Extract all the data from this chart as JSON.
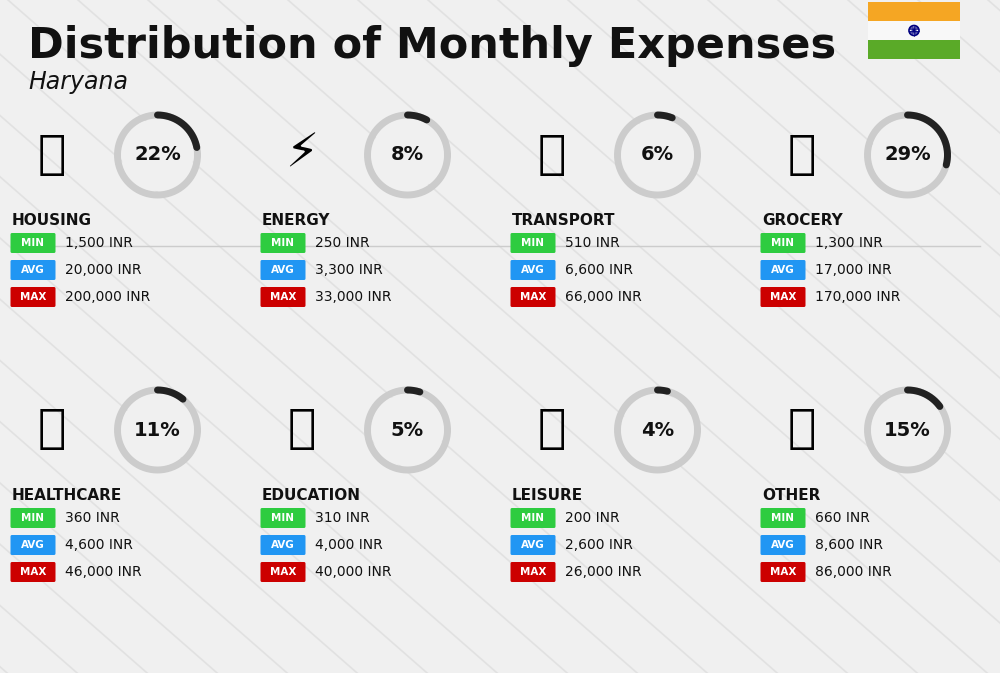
{
  "title": "Distribution of Monthly Expenses",
  "subtitle": "Haryana",
  "background_color": "#f0f0f0",
  "categories": [
    {
      "name": "HOUSING",
      "percent": 22,
      "min": "1,500 INR",
      "avg": "20,000 INR",
      "max": "200,000 INR",
      "col": 0,
      "row": 0
    },
    {
      "name": "ENERGY",
      "percent": 8,
      "min": "250 INR",
      "avg": "3,300 INR",
      "max": "33,000 INR",
      "col": 1,
      "row": 0
    },
    {
      "name": "TRANSPORT",
      "percent": 6,
      "min": "510 INR",
      "avg": "6,600 INR",
      "max": "66,000 INR",
      "col": 2,
      "row": 0
    },
    {
      "name": "GROCERY",
      "percent": 29,
      "min": "1,300 INR",
      "avg": "17,000 INR",
      "max": "170,000 INR",
      "col": 3,
      "row": 0
    },
    {
      "name": "HEALTHCARE",
      "percent": 11,
      "min": "360 INR",
      "avg": "4,600 INR",
      "max": "46,000 INR",
      "col": 0,
      "row": 1
    },
    {
      "name": "EDUCATION",
      "percent": 5,
      "min": "310 INR",
      "avg": "4,000 INR",
      "max": "40,000 INR",
      "col": 1,
      "row": 1
    },
    {
      "name": "LEISURE",
      "percent": 4,
      "min": "200 INR",
      "avg": "2,600 INR",
      "max": "26,000 INR",
      "col": 2,
      "row": 1
    },
    {
      "name": "OTHER",
      "percent": 15,
      "min": "660 INR",
      "avg": "8,600 INR",
      "max": "86,000 INR",
      "col": 3,
      "row": 1
    }
  ],
  "min_color": "#2ecc40",
  "avg_color": "#2196f3",
  "max_color": "#cc0000",
  "text_color": "#111111",
  "arc_color_filled": "#222222",
  "arc_color_empty": "#cccccc",
  "flag_orange": "#f5a623",
  "flag_green": "#5aaa28",
  "flag_navy": "#000080",
  "stripe_color": "#d0d0d0",
  "divider_color": "#cccccc"
}
